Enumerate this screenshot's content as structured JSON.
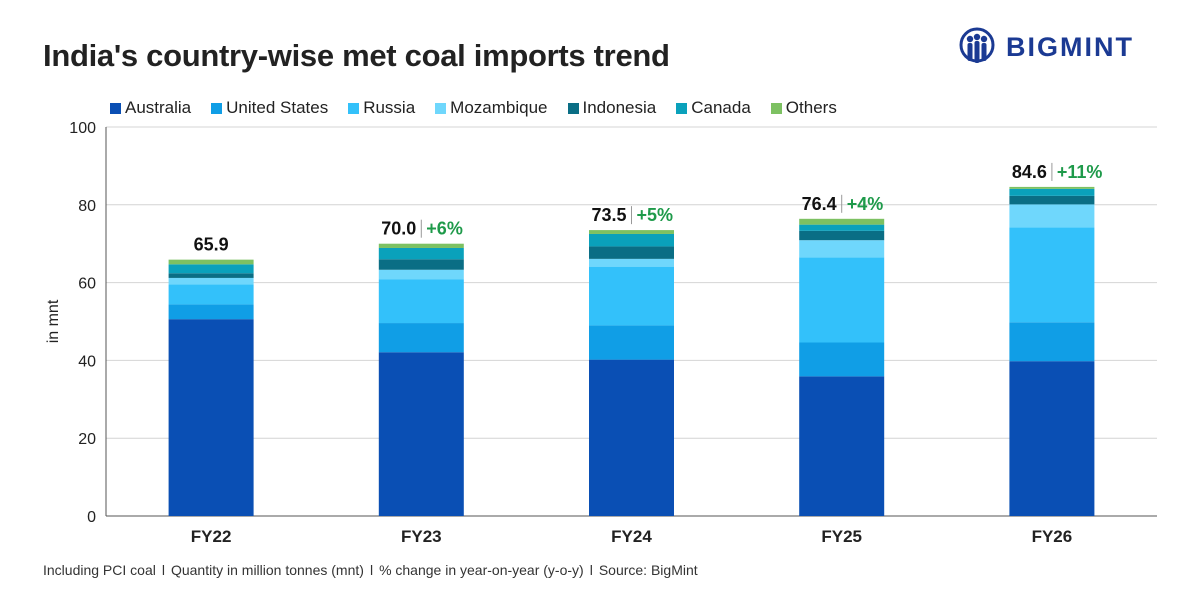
{
  "title": "India's country-wise met coal imports trend",
  "brand": {
    "name": "BIGMINT",
    "color": "#1b3a93"
  },
  "footer": {
    "parts": [
      "Including PCI coal",
      "Quantity in million tonnes (mnt)",
      "% change in year-on-year (y-o-y)",
      "Source: BigMint"
    ],
    "separator": "l"
  },
  "chart_data": {
    "type": "bar",
    "stacked": true,
    "ylabel": "in mnt",
    "ylim": [
      0,
      100
    ],
    "yticks": [
      0,
      20,
      40,
      60,
      80,
      100
    ],
    "grid": true,
    "legend_position": "top",
    "categories": [
      "FY22",
      "FY23",
      "FY24",
      "FY25",
      "FY26"
    ],
    "series": [
      {
        "name": "Australia",
        "color": "#0a4fb4",
        "values": [
          50.6,
          42.1,
          40.2,
          35.9,
          39.8
        ]
      },
      {
        "name": "United States",
        "color": "#109ee6",
        "values": [
          3.8,
          7.5,
          8.8,
          8.7,
          10.0
        ]
      },
      {
        "name": "Russia",
        "color": "#33c1fa",
        "values": [
          5.1,
          11.2,
          15.1,
          21.9,
          24.4
        ]
      },
      {
        "name": "Mozambique",
        "color": "#6fd7fc",
        "values": [
          1.7,
          2.5,
          2.0,
          4.4,
          5.9
        ]
      },
      {
        "name": "Indonesia",
        "color": "#0a6e85",
        "values": [
          1.2,
          2.7,
          3.2,
          2.4,
          2.2
        ]
      },
      {
        "name": "Canada",
        "color": "#0aa1bb",
        "values": [
          2.3,
          2.9,
          3.2,
          1.6,
          1.8
        ]
      },
      {
        "name": "Others",
        "color": "#7dc162",
        "values": [
          1.2,
          1.1,
          1.0,
          1.5,
          0.5
        ]
      }
    ],
    "totals": [
      "65.9",
      "70.0",
      "73.5",
      "76.4",
      "84.6"
    ],
    "yoy_change": [
      "",
      "+6%",
      "+5%",
      "+4%",
      "+11%"
    ],
    "yoy_color": "#1e9a4a"
  }
}
